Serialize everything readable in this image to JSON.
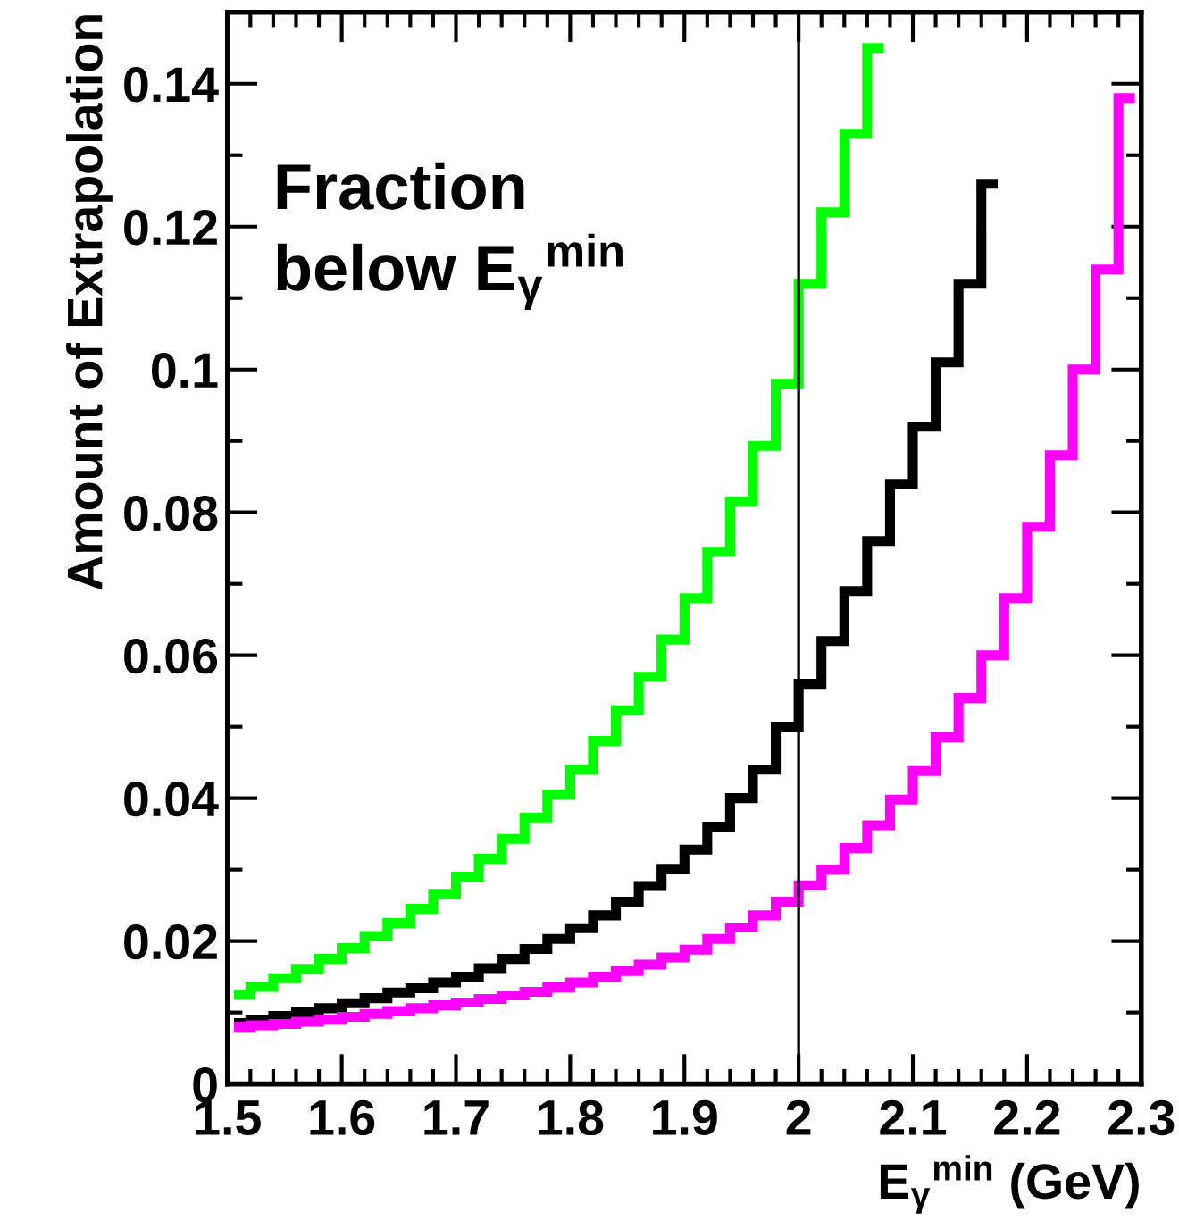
{
  "chart_data": {
    "type": "step",
    "xlabel": "E$_{γ}$$^{min}$ (GeV)",
    "ylabel": "Amount of Extrapolation",
    "annotations": [
      "Fraction\nbelow E$_{γ}$$^{min}$"
    ],
    "xlim": [
      1.5,
      2.3
    ],
    "ylim": [
      0,
      0.15
    ],
    "xticks": [
      1.5,
      1.6,
      1.7,
      1.8,
      1.9,
      2,
      2.1,
      2.2,
      2.3
    ],
    "yticks": [
      0,
      0.02,
      0.04,
      0.06,
      0.08,
      0.1,
      0.12,
      0.14
    ],
    "grid": false,
    "ref_lines": [
      {
        "axis": "x",
        "value": 2.0,
        "color": "#000000"
      }
    ],
    "series": [
      {
        "color": "#00ff00",
        "x": [
          1.51,
          1.53,
          1.55,
          1.57,
          1.59,
          1.61,
          1.63,
          1.65,
          1.67,
          1.69,
          1.71,
          1.73,
          1.75,
          1.77,
          1.79,
          1.81,
          1.83,
          1.85,
          1.87,
          1.89,
          1.91,
          1.93,
          1.95,
          1.97,
          1.99,
          2.01,
          2.03,
          2.05,
          2.07
        ],
        "values": [
          0.0125,
          0.0136,
          0.0148,
          0.0161,
          0.0175,
          0.019,
          0.0207,
          0.0225,
          0.0245,
          0.0266,
          0.029,
          0.0315,
          0.0343,
          0.0373,
          0.0405,
          0.044,
          0.048,
          0.0523,
          0.057,
          0.0622,
          0.068,
          0.0745,
          0.0815,
          0.0893,
          0.098,
          0.112,
          0.122,
          0.133,
          0.145
        ]
      },
      {
        "color": "#000000",
        "x": [
          1.51,
          1.53,
          1.55,
          1.57,
          1.59,
          1.61,
          1.63,
          1.65,
          1.67,
          1.69,
          1.71,
          1.73,
          1.75,
          1.77,
          1.79,
          1.81,
          1.83,
          1.85,
          1.87,
          1.89,
          1.91,
          1.93,
          1.95,
          1.97,
          1.99,
          2.01,
          2.03,
          2.05,
          2.07,
          2.09,
          2.11,
          2.13,
          2.15,
          2.17
        ],
        "values": [
          0.0085,
          0.009,
          0.0095,
          0.01,
          0.0106,
          0.0113,
          0.012,
          0.0128,
          0.0134,
          0.0142,
          0.015,
          0.0162,
          0.0175,
          0.0189,
          0.0203,
          0.0218,
          0.0236,
          0.0255,
          0.0277,
          0.0301,
          0.0328,
          0.036,
          0.04,
          0.044,
          0.05,
          0.056,
          0.062,
          0.069,
          0.076,
          0.084,
          0.092,
          0.101,
          0.112,
          0.126
        ]
      },
      {
        "color": "#ff00ff",
        "x": [
          1.51,
          1.53,
          1.55,
          1.57,
          1.59,
          1.61,
          1.63,
          1.65,
          1.67,
          1.69,
          1.71,
          1.73,
          1.75,
          1.77,
          1.79,
          1.81,
          1.83,
          1.85,
          1.87,
          1.89,
          1.91,
          1.93,
          1.95,
          1.97,
          1.99,
          2.01,
          2.03,
          2.05,
          2.07,
          2.09,
          2.11,
          2.13,
          2.15,
          2.17,
          2.19,
          2.21,
          2.23,
          2.25,
          2.27,
          2.29
        ],
        "values": [
          0.008,
          0.0082,
          0.0084,
          0.0087,
          0.009,
          0.0094,
          0.0098,
          0.0102,
          0.0106,
          0.011,
          0.0114,
          0.0119,
          0.0124,
          0.0129,
          0.0135,
          0.0142,
          0.015,
          0.0158,
          0.0167,
          0.0177,
          0.0188,
          0.0203,
          0.0219,
          0.0236,
          0.0255,
          0.0278,
          0.03,
          0.033,
          0.0362,
          0.0398,
          0.0438,
          0.0485,
          0.054,
          0.06,
          0.068,
          0.078,
          0.088,
          0.1,
          0.114,
          0.138
        ]
      }
    ]
  }
}
